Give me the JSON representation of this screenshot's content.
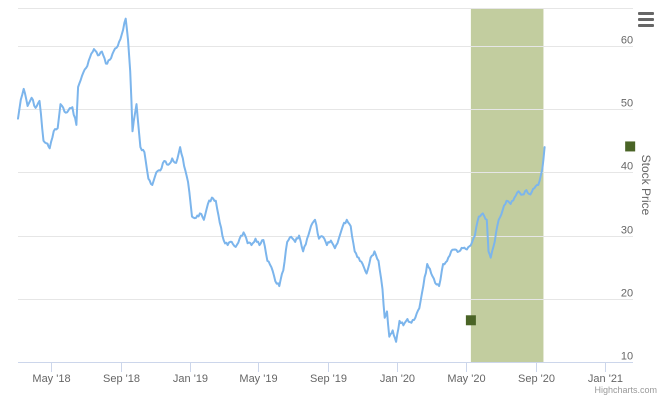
{
  "chart_data": {
    "type": "line",
    "title": "",
    "ylabel": "Stock Price",
    "xlabel": "",
    "ylim": [
      10,
      66
    ],
    "yticks": [
      10,
      20,
      30,
      40,
      50,
      60
    ],
    "xlim": [
      "2018-03-03",
      "2021-02-20"
    ],
    "xticks": [
      {
        "date": "2018-05-01",
        "label": "May '18"
      },
      {
        "date": "2018-09-01",
        "label": "Sep '18"
      },
      {
        "date": "2019-01-01",
        "label": "Jan '19"
      },
      {
        "date": "2019-05-01",
        "label": "May '19"
      },
      {
        "date": "2019-09-01",
        "label": "Sep '19"
      },
      {
        "date": "2020-01-01",
        "label": "Jan '20"
      },
      {
        "date": "2020-05-01",
        "label": "May '20"
      },
      {
        "date": "2020-09-01",
        "label": "Sep '20"
      },
      {
        "date": "2021-01-01",
        "label": "Jan '21"
      }
    ],
    "grid": true,
    "line_color": "#7cb5ec",
    "band_color": "#c2cd9f",
    "marker_color": "#4a6426",
    "highlight_band": {
      "from": "2020-05-10",
      "to": "2020-09-15"
    },
    "markers": [
      {
        "x": "2020-05-10",
        "y": 16.6
      },
      {
        "x": "2021-02-15",
        "y": 44.1
      }
    ],
    "series": [
      {
        "points": [
          [
            "2018-03-03",
            48.5
          ],
          [
            "2018-03-08",
            51.5
          ],
          [
            "2018-03-13",
            53.2
          ],
          [
            "2018-03-20",
            50.5
          ],
          [
            "2018-03-27",
            51.8
          ],
          [
            "2018-04-03",
            50.2
          ],
          [
            "2018-04-10",
            51.3
          ],
          [
            "2018-04-17",
            45.0
          ],
          [
            "2018-04-22",
            44.6
          ],
          [
            "2018-04-28",
            43.8
          ],
          [
            "2018-05-05",
            46.5
          ],
          [
            "2018-05-12",
            47.0
          ],
          [
            "2018-05-17",
            50.8
          ],
          [
            "2018-05-24",
            49.6
          ],
          [
            "2018-05-31",
            49.8
          ],
          [
            "2018-06-07",
            50.3
          ],
          [
            "2018-06-14",
            47.5
          ],
          [
            "2018-06-17",
            53.5
          ],
          [
            "2018-06-24",
            55.3
          ],
          [
            "2018-07-01",
            56.5
          ],
          [
            "2018-07-08",
            58.2
          ],
          [
            "2018-07-15",
            59.5
          ],
          [
            "2018-07-22",
            58.5
          ],
          [
            "2018-07-29",
            59.1
          ],
          [
            "2018-08-05",
            57.2
          ],
          [
            "2018-08-12",
            57.8
          ],
          [
            "2018-08-19",
            59.2
          ],
          [
            "2018-08-26",
            60.0
          ],
          [
            "2018-09-02",
            61.8
          ],
          [
            "2018-09-09",
            64.3
          ],
          [
            "2018-09-13",
            61.0
          ],
          [
            "2018-09-17",
            56.0
          ],
          [
            "2018-09-21",
            46.5
          ],
          [
            "2018-09-28",
            50.8
          ],
          [
            "2018-10-05",
            44.0
          ],
          [
            "2018-10-12",
            43.2
          ],
          [
            "2018-10-19",
            39.0
          ],
          [
            "2018-10-26",
            38.0
          ],
          [
            "2018-11-02",
            40.0
          ],
          [
            "2018-11-09",
            40.3
          ],
          [
            "2018-11-16",
            41.8
          ],
          [
            "2018-11-23",
            41.2
          ],
          [
            "2018-11-30",
            42.2
          ],
          [
            "2018-12-07",
            41.5
          ],
          [
            "2018-12-14",
            44.0
          ],
          [
            "2018-12-21",
            41.0
          ],
          [
            "2018-12-28",
            38.5
          ],
          [
            "2019-01-04",
            33.0
          ],
          [
            "2019-01-11",
            32.8
          ],
          [
            "2019-01-18",
            33.5
          ],
          [
            "2019-01-25",
            32.5
          ],
          [
            "2019-02-01",
            35.0
          ],
          [
            "2019-02-08",
            36.0
          ],
          [
            "2019-02-15",
            35.5
          ],
          [
            "2019-02-22",
            32.0
          ],
          [
            "2019-03-01",
            29.2
          ],
          [
            "2019-03-08",
            28.5
          ],
          [
            "2019-03-15",
            29.0
          ],
          [
            "2019-03-22",
            28.2
          ],
          [
            "2019-03-29",
            29.5
          ],
          [
            "2019-04-05",
            30.5
          ],
          [
            "2019-04-12",
            28.8
          ],
          [
            "2019-04-19",
            28.5
          ],
          [
            "2019-04-26",
            29.5
          ],
          [
            "2019-05-03",
            28.5
          ],
          [
            "2019-05-10",
            29.3
          ],
          [
            "2019-05-17",
            26.0
          ],
          [
            "2019-05-24",
            25.0
          ],
          [
            "2019-05-31",
            22.8
          ],
          [
            "2019-06-07",
            22.0
          ],
          [
            "2019-06-14",
            24.5
          ],
          [
            "2019-06-21",
            29.0
          ],
          [
            "2019-06-28",
            29.8
          ],
          [
            "2019-07-05",
            29.0
          ],
          [
            "2019-07-12",
            30.0
          ],
          [
            "2019-07-19",
            27.5
          ],
          [
            "2019-07-26",
            29.5
          ],
          [
            "2019-08-02",
            31.5
          ],
          [
            "2019-08-09",
            32.5
          ],
          [
            "2019-08-16",
            29.5
          ],
          [
            "2019-08-23",
            29.8
          ],
          [
            "2019-08-30",
            28.5
          ],
          [
            "2019-09-06",
            29.2
          ],
          [
            "2019-09-13",
            28.0
          ],
          [
            "2019-09-20",
            29.5
          ],
          [
            "2019-09-27",
            31.5
          ],
          [
            "2019-10-04",
            32.5
          ],
          [
            "2019-10-11",
            31.5
          ],
          [
            "2019-10-18",
            27.5
          ],
          [
            "2019-10-25",
            26.5
          ],
          [
            "2019-11-01",
            25.5
          ],
          [
            "2019-11-08",
            24.0
          ],
          [
            "2019-11-15",
            26.5
          ],
          [
            "2019-11-22",
            27.5
          ],
          [
            "2019-11-29",
            26.0
          ],
          [
            "2019-12-06",
            21.5
          ],
          [
            "2019-12-10",
            17.0
          ],
          [
            "2019-12-14",
            18.0
          ],
          [
            "2019-12-18",
            14.0
          ],
          [
            "2019-12-24",
            15.0
          ],
          [
            "2019-12-30",
            13.2
          ],
          [
            "2020-01-05",
            16.5
          ],
          [
            "2020-01-12",
            15.8
          ],
          [
            "2020-01-19",
            16.8
          ],
          [
            "2020-01-26",
            16.2
          ],
          [
            "2020-02-02",
            17.0
          ],
          [
            "2020-02-09",
            18.5
          ],
          [
            "2020-02-16",
            22.0
          ],
          [
            "2020-02-23",
            25.5
          ],
          [
            "2020-03-01",
            24.0
          ],
          [
            "2020-03-08",
            22.5
          ],
          [
            "2020-03-15",
            22.0
          ],
          [
            "2020-03-22",
            25.5
          ],
          [
            "2020-03-29",
            26.0
          ],
          [
            "2020-04-05",
            27.5
          ],
          [
            "2020-04-12",
            27.8
          ],
          [
            "2020-04-19",
            27.5
          ],
          [
            "2020-04-26",
            28.0
          ],
          [
            "2020-05-03",
            27.8
          ],
          [
            "2020-05-10",
            28.5
          ],
          [
            "2020-05-17",
            30.0
          ],
          [
            "2020-05-24",
            33.0
          ],
          [
            "2020-05-31",
            33.5
          ],
          [
            "2020-06-07",
            32.5
          ],
          [
            "2020-06-10",
            27.5
          ],
          [
            "2020-06-14",
            26.5
          ],
          [
            "2020-06-21",
            29.0
          ],
          [
            "2020-06-28",
            32.5
          ],
          [
            "2020-07-05",
            34.0
          ],
          [
            "2020-07-12",
            35.5
          ],
          [
            "2020-07-19",
            35.0
          ],
          [
            "2020-07-26",
            36.0
          ],
          [
            "2020-08-02",
            37.0
          ],
          [
            "2020-08-09",
            36.5
          ],
          [
            "2020-08-16",
            37.2
          ],
          [
            "2020-08-23",
            36.5
          ],
          [
            "2020-08-30",
            37.5
          ],
          [
            "2020-09-06",
            38.0
          ],
          [
            "2020-09-13",
            40.5
          ],
          [
            "2020-09-17",
            44.0
          ]
        ]
      }
    ]
  },
  "credits": "Highcharts.com",
  "icons": {
    "menu": "hamburger-menu-icon"
  }
}
